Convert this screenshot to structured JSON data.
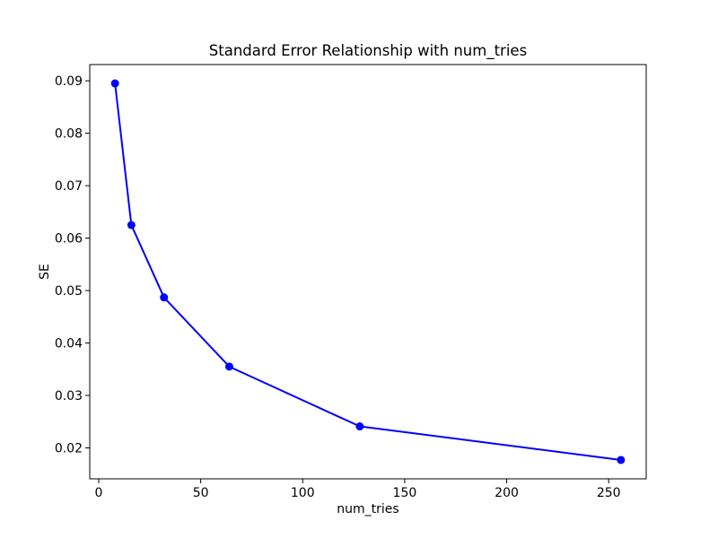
{
  "chart_data": {
    "type": "line",
    "title": "Standard Error Relationship with num_tries",
    "xlabel": "num_tries",
    "ylabel": "SE",
    "x": [
      8,
      16,
      32,
      64,
      128,
      256
    ],
    "y": [
      0.0895,
      0.0625,
      0.0487,
      0.0355,
      0.0241,
      0.0177
    ],
    "x_ticks": [
      0,
      50,
      100,
      150,
      200,
      250
    ],
    "y_ticks": [
      0.02,
      0.03,
      0.04,
      0.05,
      0.06,
      0.07,
      0.08,
      0.09
    ],
    "xlim": [
      -4.4,
      268.4
    ],
    "ylim": [
      0.0141,
      0.0931
    ],
    "line_color": "#0000ff",
    "marker": "circle",
    "marker_color": "#0000ff",
    "grid": false,
    "legend": null,
    "background": "#ffffff",
    "axis_color": "#000000"
  }
}
